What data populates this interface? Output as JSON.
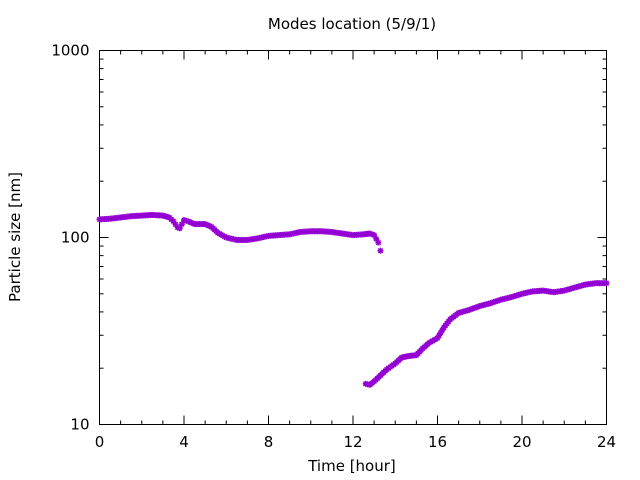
{
  "chart_data": {
    "type": "scatter",
    "title": "Modes location (5/9/1)",
    "xlabel": "Time [hour]",
    "ylabel": "Particle size [nm]",
    "xlim": [
      0,
      24
    ],
    "ylim": [
      10,
      1000
    ],
    "y_scale": "log",
    "grid": false,
    "legend": "none",
    "marker_color": "#9400d3",
    "x_ticks": [
      "0",
      "4",
      "8",
      "12",
      "16",
      "20",
      "24"
    ],
    "y_ticks": [
      "10",
      "100",
      "1000"
    ],
    "series": [
      {
        "points": [
          [
            0.0,
            125
          ],
          [
            0.5,
            126
          ],
          [
            1.0,
            128
          ],
          [
            1.5,
            130
          ],
          [
            2.0,
            131
          ],
          [
            2.5,
            132
          ],
          [
            3.0,
            131
          ],
          [
            3.3,
            128
          ],
          [
            3.5,
            122
          ],
          [
            3.7,
            113
          ],
          [
            3.8,
            112
          ],
          [
            4.0,
            124
          ],
          [
            4.2,
            122
          ],
          [
            4.5,
            118
          ],
          [
            5.0,
            118
          ],
          [
            5.3,
            114
          ],
          [
            5.6,
            106
          ],
          [
            6.0,
            100
          ],
          [
            6.5,
            97
          ],
          [
            7.0,
            97
          ],
          [
            7.5,
            99
          ],
          [
            8.0,
            102
          ],
          [
            8.5,
            103
          ],
          [
            9.0,
            104
          ],
          [
            9.5,
            107
          ],
          [
            10.0,
            108
          ],
          [
            10.5,
            108
          ],
          [
            11.0,
            107
          ],
          [
            11.5,
            105
          ],
          [
            12.0,
            103
          ],
          [
            12.5,
            104
          ],
          [
            12.8,
            105
          ],
          [
            13.0,
            103
          ],
          [
            13.2,
            94
          ],
          [
            13.3,
            85
          ]
        ]
      },
      {
        "points": [
          [
            12.6,
            16.5
          ],
          [
            12.8,
            16.3
          ],
          [
            13.0,
            17.0
          ],
          [
            13.3,
            18.3
          ],
          [
            13.6,
            19.7
          ],
          [
            14.0,
            21.2
          ],
          [
            14.3,
            22.8
          ],
          [
            14.6,
            23.2
          ],
          [
            15.0,
            23.5
          ],
          [
            15.3,
            25.5
          ],
          [
            15.6,
            27.3
          ],
          [
            16.0,
            29.0
          ],
          [
            16.3,
            33.0
          ],
          [
            16.6,
            36.5
          ],
          [
            17.0,
            39.5
          ],
          [
            17.5,
            41.0
          ],
          [
            18.0,
            43.0
          ],
          [
            18.5,
            44.5
          ],
          [
            19.0,
            46.5
          ],
          [
            19.5,
            48.0
          ],
          [
            20.0,
            50.0
          ],
          [
            20.5,
            51.5
          ],
          [
            21.0,
            52.0
          ],
          [
            21.5,
            51.0
          ],
          [
            22.0,
            52.0
          ],
          [
            22.5,
            54.0
          ],
          [
            23.0,
            56.0
          ],
          [
            23.5,
            57.0
          ],
          [
            24.0,
            57.0
          ]
        ]
      }
    ]
  }
}
